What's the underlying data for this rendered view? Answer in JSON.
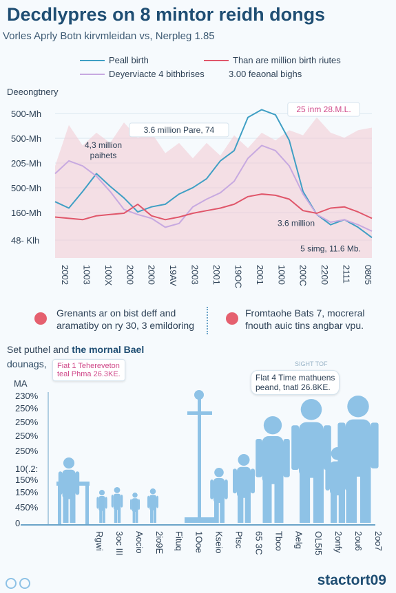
{
  "header": {
    "title": "Decdlypres on 8 mintor reidh dongs",
    "subtitle": "Vorles Aprly Botn kirvmleidan vs, Nerpleg 1.85"
  },
  "legend": [
    {
      "label": "Peall birth",
      "color": "#3f9fc4"
    },
    {
      "label": "Than are million birth riutes",
      "color": "#e0566a"
    },
    {
      "label": "Deyerviacte 4 bithbrises",
      "color": "#c7a9e0"
    },
    {
      "label": "3.00 feaonal bighs",
      "color": ""
    }
  ],
  "chart_data": [
    {
      "type": "line",
      "title": "",
      "ylabel": "Deeongtnery",
      "y_ticks": [
        "500-Mh",
        "500-Mh",
        "205-Mh",
        "500-Mh",
        "160-Mh",
        "48- Klh"
      ],
      "x_ticks": [
        "2002",
        "1003",
        "100X",
        "2000",
        "2000",
        "19AV",
        "2003",
        "2001",
        "19OC",
        "2001",
        "1000",
        "200C",
        "2200",
        "2111",
        "0805"
      ],
      "x": [
        0,
        1,
        2,
        3,
        4,
        5,
        6,
        7,
        8,
        9,
        10,
        11,
        12,
        13,
        14,
        15,
        16,
        17,
        18,
        19,
        20,
        21,
        22,
        23
      ],
      "ylim": [
        0,
        6
      ],
      "series": [
        {
          "name": "Peall birth",
          "color": "#3f9fc4",
          "values": [
            2.2,
            1.95,
            2.6,
            3.3,
            2.8,
            2.35,
            1.8,
            2.0,
            2.1,
            2.5,
            2.75,
            3.1,
            3.8,
            4.2,
            5.5,
            5.8,
            5.6,
            4.6,
            2.6,
            1.7,
            1.3,
            1.5,
            1.2,
            0.8
          ]
        },
        {
          "name": "Deyerviacte 4 bithbrises",
          "color": "#c7a9e0",
          "values": [
            3.3,
            3.8,
            3.6,
            3.2,
            2.6,
            1.9,
            1.7,
            1.55,
            1.2,
            1.35,
            2.0,
            2.3,
            2.55,
            3.0,
            3.9,
            4.4,
            4.2,
            3.6,
            2.5,
            1.7,
            1.4,
            1.5,
            1.3,
            1.05
          ]
        },
        {
          "name": "Than are million birth riutes",
          "color": "#e0566a",
          "values": [
            1.6,
            1.55,
            1.5,
            1.65,
            1.7,
            1.75,
            2.1,
            1.65,
            1.5,
            1.6,
            1.75,
            1.85,
            1.95,
            2.1,
            2.4,
            2.5,
            2.45,
            2.3,
            1.85,
            1.75,
            1.95,
            2.0,
            1.8,
            1.55
          ]
        },
        {
          "name": "",
          "type": "area",
          "color": "#f2c9d2",
          "values": [
            3.6,
            5.2,
            4.4,
            4.9,
            4.5,
            5.3,
            4.7,
            4.9,
            4.1,
            4.5,
            3.9,
            4.5,
            4.0,
            4.8,
            4.3,
            4.9,
            4.6,
            5.0,
            4.8,
            5.5,
            4.9,
            4.7,
            5.0,
            5.1
          ]
        }
      ],
      "annotations": [
        {
          "text": "4,3 million",
          "text2": "paihets",
          "x": 3.5,
          "y": 4.3
        },
        {
          "text": "3.6 million Pare, 74",
          "x": 9,
          "y": 4.9,
          "box": true
        },
        {
          "text": "25 inm 28.M.L.",
          "x": 19.5,
          "y": 5.7,
          "box": true
        },
        {
          "text": "3.6 million",
          "x": 17.5,
          "y": 1.25
        },
        {
          "text": "5 simg, 11.6 Mb.",
          "x": 20,
          "y": 0.25
        }
      ]
    },
    {
      "type": "bar",
      "title": "Set puthel and the mornal Bael",
      "ylabel": "MA",
      "y_ticks": [
        "230%",
        "250%",
        "250%",
        "250%",
        "250%",
        "10(.2:",
        "150%",
        "150%",
        "450%",
        "0"
      ],
      "x_ticks": [
        "Rgwi",
        "3oc III",
        "Aocio",
        "2io9E",
        "Fituq",
        "1Ooe",
        "Kseio",
        "Ptsc",
        "65 3C",
        "Tbco",
        "Aelg",
        "OL5I5",
        "2onfy",
        "2ou6",
        "2oo7"
      ]
    }
  ],
  "notes": [
    {
      "line1": "Grenants ar on bist deff and",
      "line2": "aramatiby on ry 30, 3 emildoring"
    },
    {
      "line1": "Fromtaohe Bats 7, mocreral",
      "line2": "fnouth auic tins angbar vpu."
    }
  ],
  "section2": {
    "heading_pre": "Set puthel and",
    "heading_bold": "the mornal Bael",
    "label2": "dounags,",
    "callout_left": "Fiat 1 Tehereveton",
    "callout_left2": "teal Phma 26.3KE.",
    "callout_right_top": "SIGHT TOF",
    "callout_right": "Flat 4 Time mathuens",
    "callout_right2": "peand, tnatl 26.8KE."
  },
  "footer": {
    "brand": "stactort09"
  },
  "colors": {
    "figure": "#8ec2e6",
    "accent": "#1f4e73",
    "dot": "#e5606f"
  }
}
